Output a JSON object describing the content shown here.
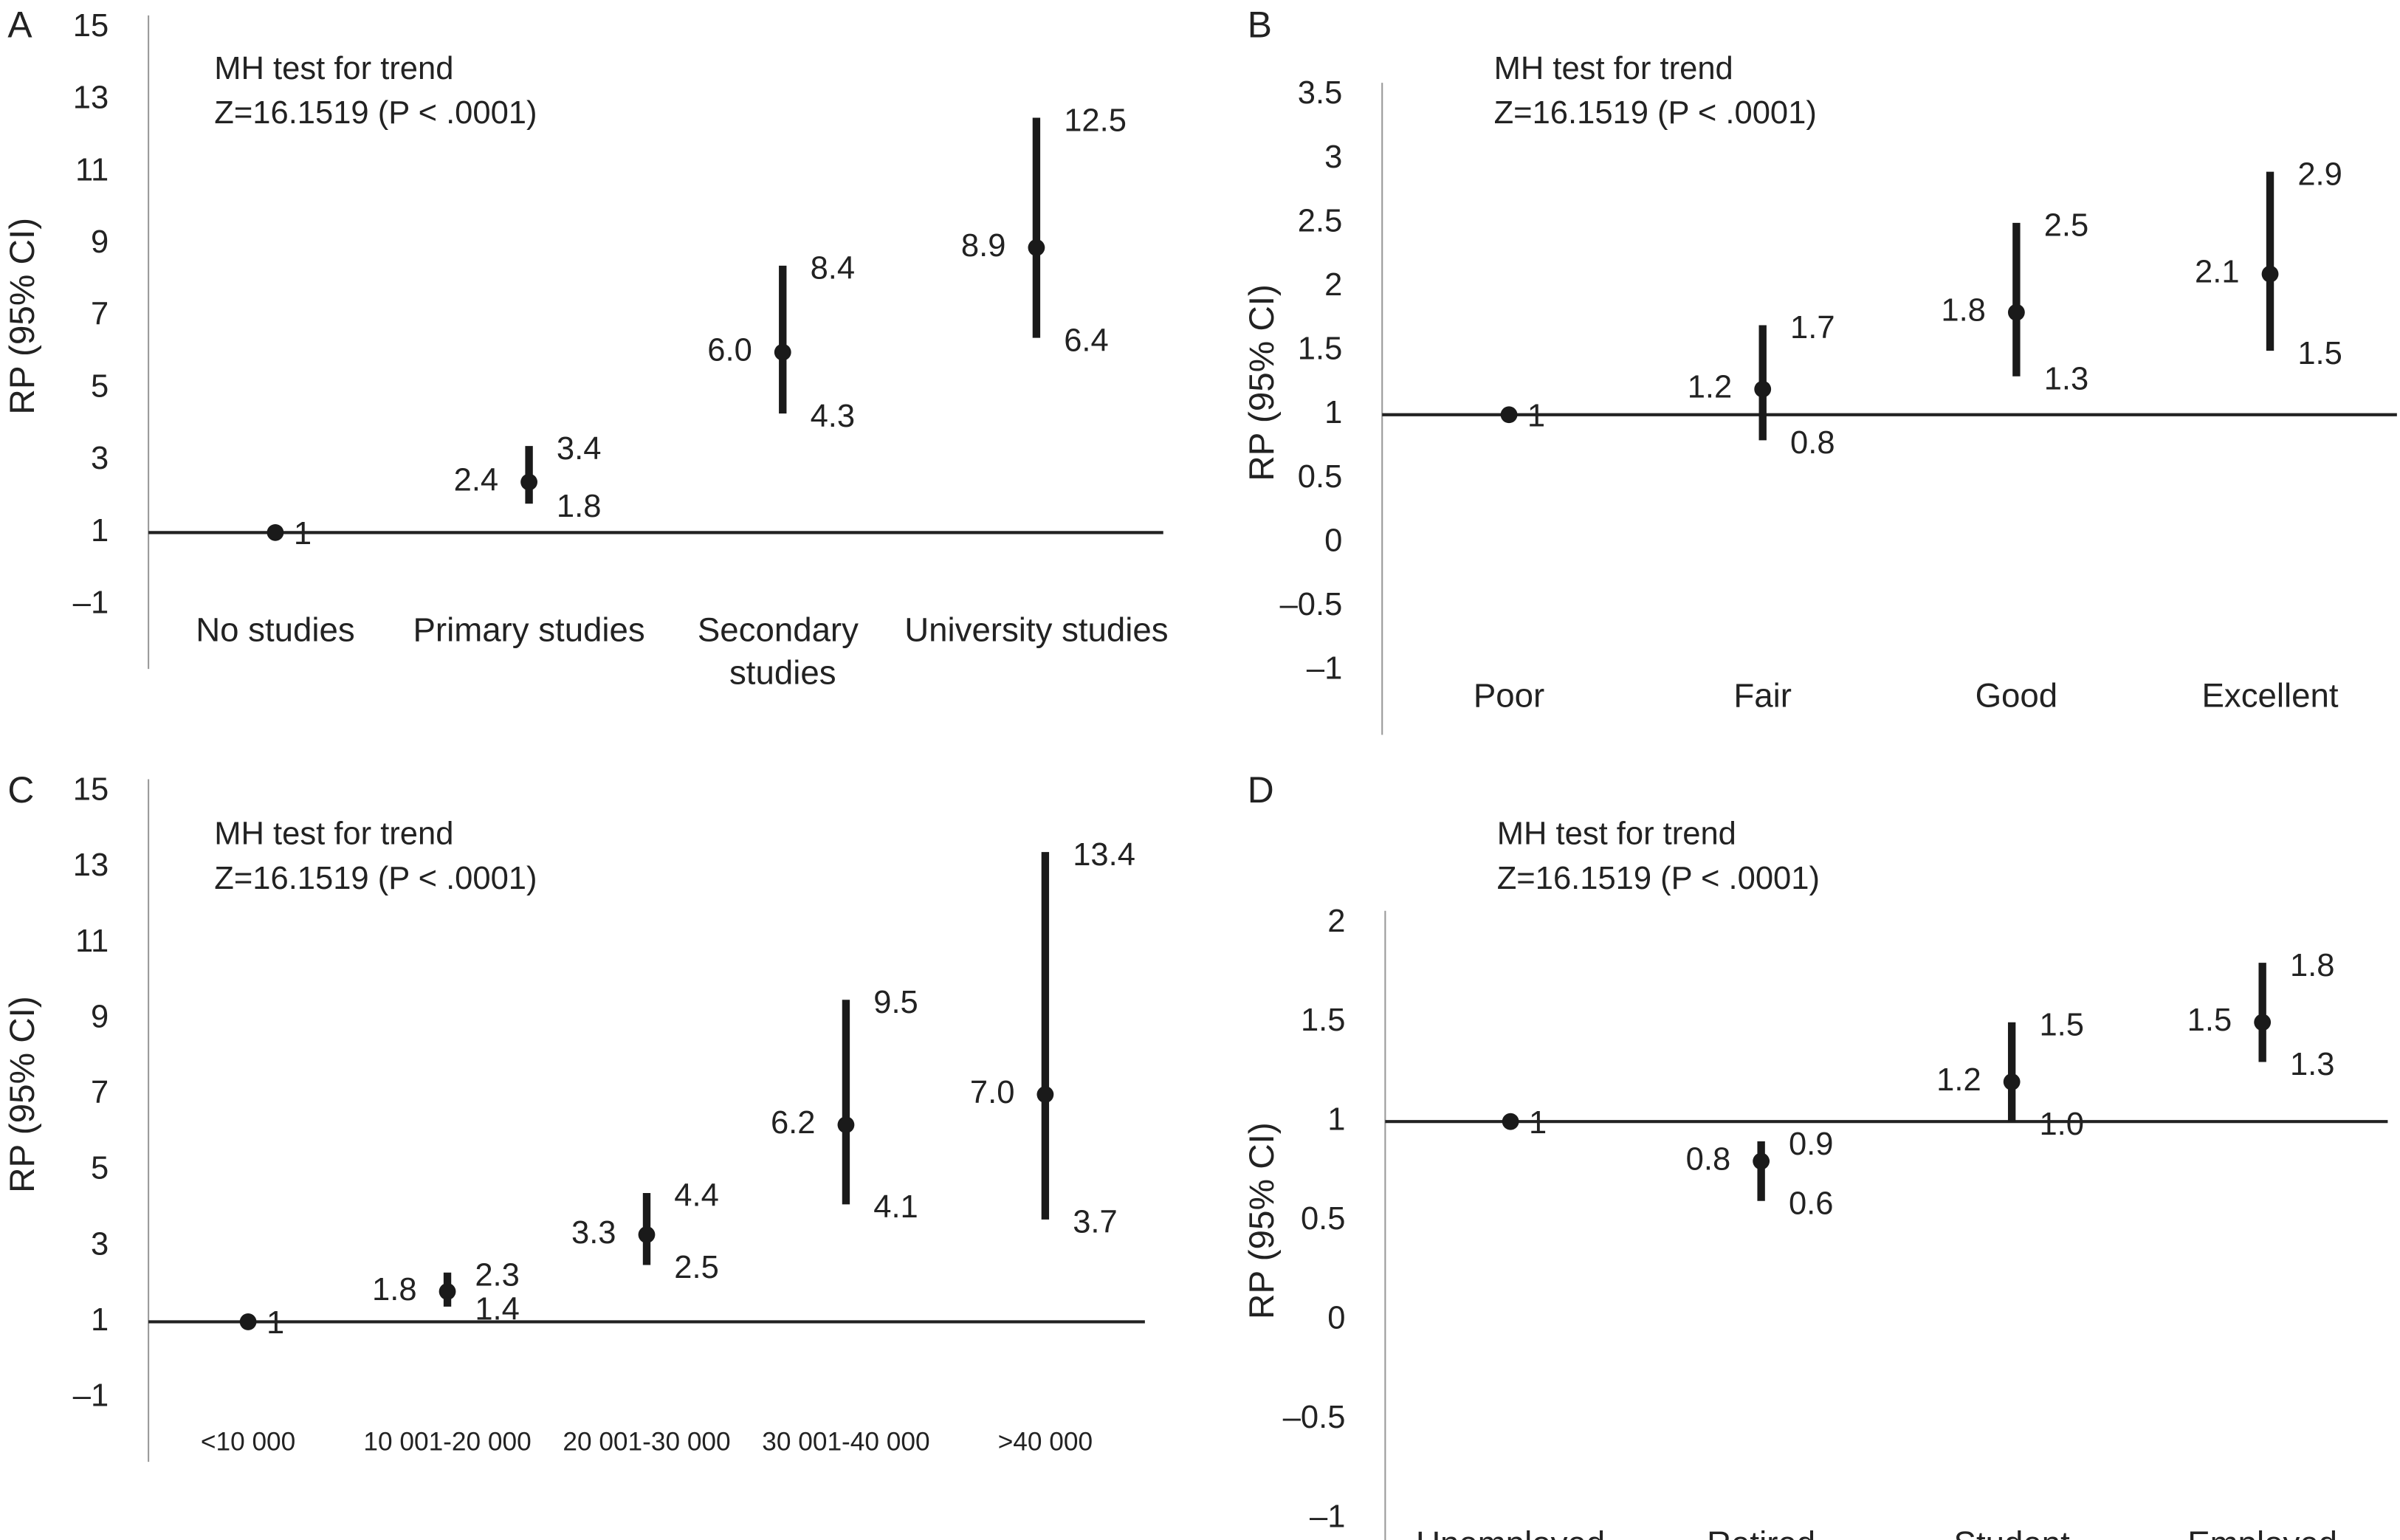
{
  "chart_data": [
    {
      "type": "errorbar",
      "panel": "A",
      "annotations": [
        "MH test for trend",
        "Z=16.1519 (P < .0001)"
      ],
      "ylabel": "RP (95% CI)",
      "categories": [
        "No studies",
        "Primary studies",
        "Secondary studies",
        "University studies"
      ],
      "values": [
        1,
        2.4,
        6.0,
        8.9
      ],
      "value_labels": [
        "1",
        "2.4",
        "6.0",
        "8.9"
      ],
      "lower": [
        null,
        1.8,
        4.3,
        6.4
      ],
      "lower_labels": [
        null,
        "1.8",
        "4.3",
        "6.4"
      ],
      "upper": [
        null,
        3.4,
        8.4,
        12.5
      ],
      "upper_labels": [
        null,
        "3.4",
        "8.4",
        "12.5"
      ],
      "reference_line": 1,
      "color": "#1a1a1a",
      "ylim": [
        -1,
        15
      ],
      "yticks": [
        {
          "value": -1,
          "label": "–1"
        },
        1,
        3,
        5,
        7,
        9,
        11,
        13,
        15
      ]
    },
    {
      "type": "errorbar",
      "panel": "B",
      "annotations": [
        "MH test for trend",
        "Z=16.1519 (P < .0001)"
      ],
      "ylabel": "RP (95% CI)",
      "categories": [
        "Poor",
        "Fair",
        "Good",
        "Excellent"
      ],
      "values": [
        1,
        1.2,
        1.8,
        2.1
      ],
      "value_labels": [
        "1",
        "1.2",
        "1.8",
        "2.1"
      ],
      "lower": [
        null,
        0.8,
        1.3,
        1.5
      ],
      "lower_labels": [
        null,
        "0.8",
        "1.3",
        "1.5"
      ],
      "upper": [
        null,
        1.7,
        2.5,
        2.9
      ],
      "upper_labels": [
        null,
        "1.7",
        "2.5",
        "2.9"
      ],
      "reference_line": 1,
      "color": "#1a1a1a",
      "ylim": [
        -1,
        3.5
      ],
      "yticks": [
        {
          "value": -1,
          "label": "–1"
        },
        {
          "value": -0.5,
          "label": "–0.5"
        },
        0,
        0.5,
        1,
        1.5,
        2,
        2.5,
        3,
        3.5
      ]
    },
    {
      "type": "errorbar",
      "panel": "C",
      "annotations": [
        "MH test for trend",
        "Z=16.1519 (P < .0001)"
      ],
      "ylabel": "RP (95% CI)",
      "categories": [
        "<10 000",
        "10 001-20 000",
        "20 001-30 000",
        "30 001-40 000",
        ">40 000"
      ],
      "values": [
        1,
        1.8,
        3.3,
        6.2,
        7.0
      ],
      "value_labels": [
        "1",
        "1.8",
        "3.3",
        "6.2",
        "7.0"
      ],
      "lower": [
        null,
        1.4,
        2.5,
        4.1,
        3.7
      ],
      "lower_labels": [
        null,
        "1.4",
        "2.5",
        "4.1",
        "3.7"
      ],
      "upper": [
        null,
        2.3,
        4.4,
        9.5,
        13.4
      ],
      "upper_labels": [
        null,
        "2.3",
        "4.4",
        "9.5",
        "13.4"
      ],
      "reference_line": 1,
      "color": "#1a1a1a",
      "ylim": [
        -1,
        15
      ],
      "yticks": [
        {
          "value": -1,
          "label": "–1"
        },
        1,
        3,
        5,
        7,
        9,
        11,
        13,
        15
      ]
    },
    {
      "type": "errorbar",
      "panel": "D",
      "annotations": [
        "MH test for trend",
        "Z=16.1519 (P < .0001)"
      ],
      "ylabel": "RP (95% CI)",
      "categories": [
        "Unemployed",
        "Retired",
        "Student",
        "Employed"
      ],
      "values": [
        1,
        0.8,
        1.2,
        1.5
      ],
      "value_labels": [
        "1",
        "0.8",
        "1.2",
        "1.5"
      ],
      "lower": [
        null,
        0.6,
        1.0,
        1.3
      ],
      "lower_labels": [
        null,
        "0.6",
        "1.0",
        "1.3"
      ],
      "upper": [
        null,
        0.9,
        1.5,
        1.8
      ],
      "upper_labels": [
        null,
        "0.9",
        "1.5",
        "1.8"
      ],
      "reference_line": 1,
      "color": "#1a1a1a",
      "ylim": [
        -1,
        2
      ],
      "yticks": [
        {
          "value": -1,
          "label": "–1"
        },
        {
          "value": -0.5,
          "label": "–0.5"
        },
        0,
        0.5,
        1,
        1.5,
        2
      ]
    }
  ]
}
